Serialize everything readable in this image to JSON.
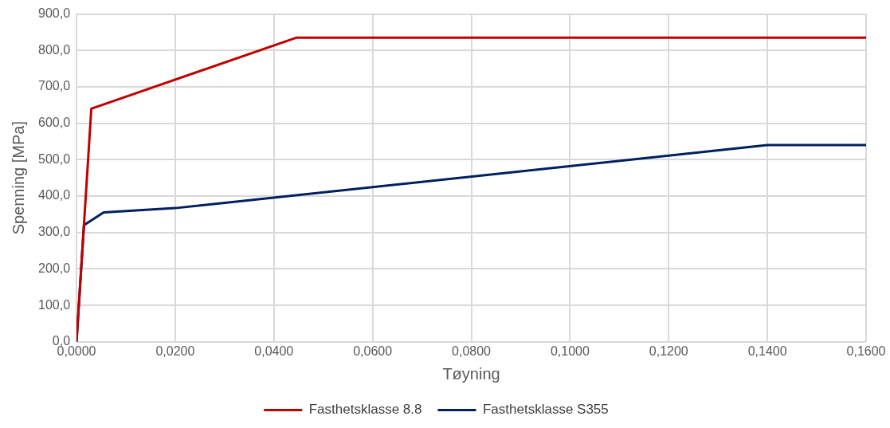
{
  "chart_data": {
    "type": "line",
    "xlabel": "Tøyning",
    "ylabel": "Spenning [MPa]",
    "series": [
      {
        "name": "Fasthetsklasse 8.8",
        "color": "#c00000",
        "x": [
          0,
          0.003,
          0.0445,
          0.16
        ],
        "values": [
          0,
          640,
          835,
          835
        ]
      },
      {
        "name": "Fasthetsklasse S355",
        "color": "#002060",
        "x": [
          0,
          0.0015,
          0.0055,
          0.02,
          0.14,
          0.16
        ],
        "values": [
          0,
          320,
          355,
          367,
          540,
          540
        ]
      }
    ],
    "xlim": [
      0,
      0.16
    ],
    "xticks": [
      {
        "value": 0,
        "label": "0,0000"
      },
      {
        "value": 0.02,
        "label": "0,0200"
      },
      {
        "value": 0.04,
        "label": "0,0400"
      },
      {
        "value": 0.06,
        "label": "0,0600"
      },
      {
        "value": 0.08,
        "label": "0,0800"
      },
      {
        "value": 0.1,
        "label": "0,1000"
      },
      {
        "value": 0.12,
        "label": "0,1200"
      },
      {
        "value": 0.14,
        "label": "0,1400"
      },
      {
        "value": 0.16,
        "label": "0,1600"
      }
    ],
    "ylim": [
      0,
      900
    ],
    "yticks": [
      {
        "value": 0,
        "label": "0,0"
      },
      {
        "value": 100,
        "label": "100,0"
      },
      {
        "value": 200,
        "label": "200,0"
      },
      {
        "value": 300,
        "label": "300,0"
      },
      {
        "value": 400,
        "label": "400,0"
      },
      {
        "value": 500,
        "label": "500,0"
      },
      {
        "value": 600,
        "label": "600,0"
      },
      {
        "value": 700,
        "label": "700,0"
      },
      {
        "value": 800,
        "label": "800,0"
      },
      {
        "value": 900,
        "label": "900,0"
      }
    ],
    "grid": true,
    "legend": "bottom",
    "marker": "none",
    "line_style": "solid"
  }
}
